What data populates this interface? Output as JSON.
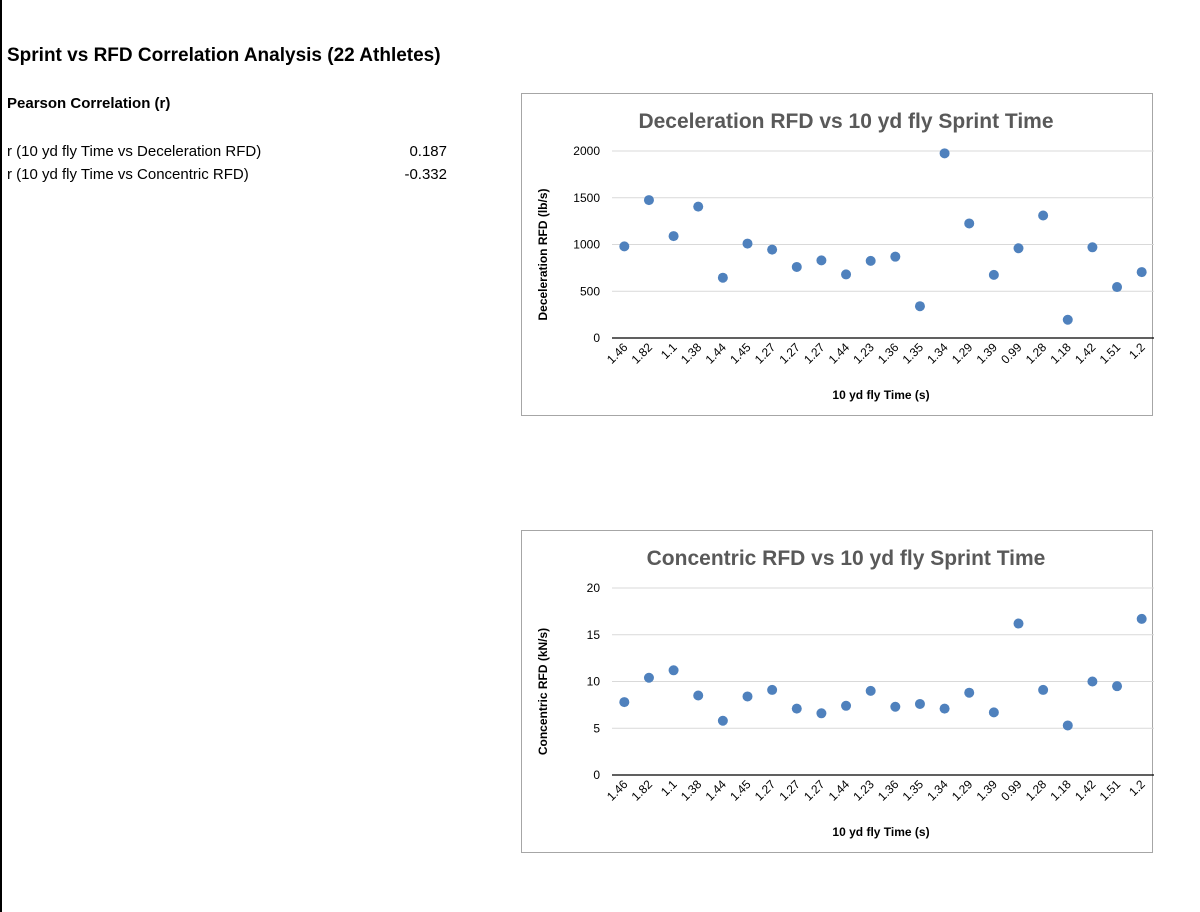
{
  "page": {
    "title": "Sprint vs RFD Correlation Analysis (22 Athletes)",
    "subheading": "Pearson Correlation (r)",
    "correlations": [
      {
        "label": "r (10 yd fly Time vs Deceleration RFD)",
        "value": "0.187"
      },
      {
        "label": "r (10 yd fly Time vs Concentric RFD)",
        "value": "-0.332"
      }
    ]
  },
  "chart_data": [
    {
      "type": "scatter",
      "title": "Deceleration RFD vs 10 yd fly Sprint Time",
      "xlabel": "10 yd fly Time (s)",
      "ylabel": "Deceleration RFD (lb/s)",
      "categories": [
        "1.46",
        "1.82",
        "1.1",
        "1.38",
        "1.44",
        "1.45",
        "1.27",
        "1.27",
        "1.27",
        "1.44",
        "1.23",
        "1.36",
        "1.35",
        "1.34",
        "1.29",
        "1.39",
        "0.99",
        "1.28",
        "1.18",
        "1.42",
        "1.51",
        "1.2"
      ],
      "values": [
        980,
        1475,
        1090,
        1405,
        645,
        1010,
        945,
        760,
        830,
        680,
        825,
        870,
        340,
        1975,
        1225,
        675,
        960,
        1310,
        195,
        970,
        545,
        705
      ],
      "ylim": [
        0,
        2000
      ],
      "yticks": [
        0,
        500,
        1000,
        1500,
        2000
      ],
      "grid": true,
      "marker_color": "#4f81bd"
    },
    {
      "type": "scatter",
      "title": "Concentric RFD vs 10 yd fly Sprint Time",
      "xlabel": "10 yd fly Time (s)",
      "ylabel": "Concentric RFD (kN/s)",
      "categories": [
        "1.46",
        "1.82",
        "1.1",
        "1.38",
        "1.44",
        "1.45",
        "1.27",
        "1.27",
        "1.27",
        "1.44",
        "1.23",
        "1.36",
        "1.35",
        "1.34",
        "1.29",
        "1.39",
        "0.99",
        "1.28",
        "1.18",
        "1.42",
        "1.51",
        "1.2"
      ],
      "values": [
        7.8,
        10.4,
        11.2,
        8.5,
        5.8,
        8.4,
        9.1,
        7.1,
        6.6,
        7.4,
        9.0,
        7.3,
        7.6,
        7.1,
        8.8,
        6.7,
        16.2,
        9.1,
        5.3,
        10.0,
        9.5,
        16.7
      ],
      "ylim": [
        0,
        20
      ],
      "yticks": [
        0,
        5,
        10,
        15,
        20
      ],
      "grid": true,
      "marker_color": "#4f81bd"
    }
  ]
}
